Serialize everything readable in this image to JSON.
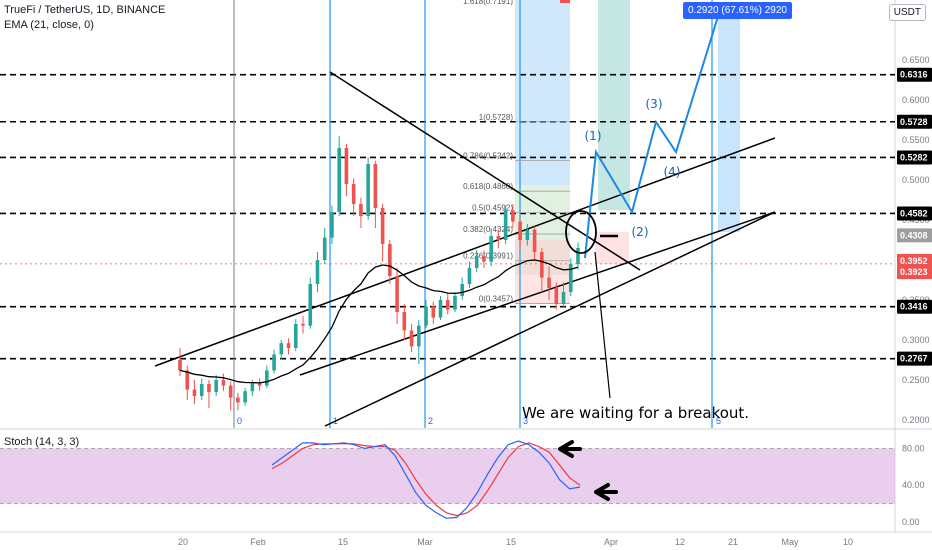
{
  "header": {
    "symbol": "TrueFi / TetherUS, 1D, BINANCE",
    "ema": "EMA (21, close, 0)",
    "stoch": "Stoch (14, 3, 3)",
    "currency": "USDT"
  },
  "annotation": "We are waiting for a breakout.",
  "target_callout": "0.2920 (67.61%) 2920",
  "colors": {
    "up": "#26a69a",
    "down": "#ef5350",
    "ema": "#000000",
    "stoch_k": "#2962ff",
    "stoch_d": "#f23645",
    "stoch_band": "#e1bee7",
    "accent": "#2962ff"
  },
  "chart_data": {
    "type": "candlestick",
    "y_ticks": [
      "0.6500",
      "0.6000",
      "0.5500",
      "0.5000",
      "0.4500",
      "0.4000",
      "0.3500",
      "0.3000",
      "0.2500",
      "0.2000"
    ],
    "price_labels": [
      {
        "label": "0.6316",
        "value": 0.6316,
        "style": "dark"
      },
      {
        "label": "0.5728",
        "value": 0.5728,
        "style": "dark"
      },
      {
        "label": "0.5282",
        "value": 0.5282,
        "style": "dark"
      },
      {
        "label": "0.4582",
        "value": 0.4582,
        "style": "dark"
      },
      {
        "label": "0.4308",
        "value": 0.4308,
        "style": "gray"
      },
      {
        "label": "0.3952",
        "value": 0.3952,
        "style": "red"
      },
      {
        "label": "0.3923",
        "value": 0.3923,
        "style": "red"
      },
      {
        "label": "0.3416",
        "value": 0.3416,
        "style": "dark"
      },
      {
        "label": "0.2767",
        "value": 0.2767,
        "style": "dark"
      }
    ],
    "x_ticks": [
      "20",
      "Feb",
      "15",
      "Mar",
      "15",
      "Apr",
      "12",
      "21",
      "May",
      "10"
    ],
    "vline_labels": [
      "0",
      "1",
      "2",
      "3",
      "5"
    ],
    "fib_levels": [
      {
        "label": "1(0.5728)",
        "value": 0.5728
      },
      {
        "label": "0.786(0.5242)",
        "value": 0.5242
      },
      {
        "label": "0.618(0.4860)",
        "value": 0.486
      },
      {
        "label": "0.5(0.4592)",
        "value": 0.4592
      },
      {
        "label": "0.382(0.4324)",
        "value": 0.4324
      },
      {
        "label": "0.236(0.3991)",
        "value": 0.3991
      },
      {
        "label": "0(0.3457)",
        "value": 0.3457
      }
    ],
    "wave_labels": [
      "(1)",
      "(2)",
      "(3)",
      "(4)"
    ],
    "stoch_ticks": [
      "80.00",
      "40.00",
      "0.00"
    ],
    "candles": [
      [
        0.275,
        0.262,
        0.29,
        0.255
      ],
      [
        0.262,
        0.238,
        0.268,
        0.225
      ],
      [
        0.238,
        0.23,
        0.25,
        0.22
      ],
      [
        0.23,
        0.245,
        0.252,
        0.225
      ],
      [
        0.245,
        0.235,
        0.25,
        0.215
      ],
      [
        0.235,
        0.25,
        0.256,
        0.23
      ],
      [
        0.25,
        0.243,
        0.258,
        0.236
      ],
      [
        0.243,
        0.228,
        0.248,
        0.212
      ],
      [
        0.228,
        0.222,
        0.234,
        0.212
      ],
      [
        0.222,
        0.236,
        0.24,
        0.218
      ],
      [
        0.236,
        0.246,
        0.25,
        0.23
      ],
      [
        0.246,
        0.243,
        0.252,
        0.236
      ],
      [
        0.243,
        0.262,
        0.268,
        0.24
      ],
      [
        0.262,
        0.282,
        0.288,
        0.258
      ],
      [
        0.282,
        0.296,
        0.3,
        0.276
      ],
      [
        0.296,
        0.29,
        0.302,
        0.282
      ],
      [
        0.29,
        0.32,
        0.326,
        0.286
      ],
      [
        0.32,
        0.318,
        0.33,
        0.308
      ],
      [
        0.318,
        0.37,
        0.378,
        0.314
      ],
      [
        0.37,
        0.4,
        0.41,
        0.36
      ],
      [
        0.4,
        0.428,
        0.44,
        0.395
      ],
      [
        0.428,
        0.46,
        0.468,
        0.42
      ],
      [
        0.46,
        0.54,
        0.555,
        0.455
      ],
      [
        0.54,
        0.495,
        0.545,
        0.48
      ],
      [
        0.495,
        0.47,
        0.502,
        0.455
      ],
      [
        0.47,
        0.455,
        0.478,
        0.44
      ],
      [
        0.455,
        0.52,
        0.528,
        0.45
      ],
      [
        0.52,
        0.465,
        0.524,
        0.44
      ],
      [
        0.465,
        0.42,
        0.47,
        0.398
      ],
      [
        0.42,
        0.38,
        0.425,
        0.37
      ],
      [
        0.38,
        0.335,
        0.39,
        0.32
      ],
      [
        0.335,
        0.312,
        0.345,
        0.3
      ],
      [
        0.312,
        0.292,
        0.32,
        0.285
      ],
      [
        0.292,
        0.318,
        0.325,
        0.27
      ],
      [
        0.318,
        0.342,
        0.35,
        0.315
      ],
      [
        0.342,
        0.328,
        0.348,
        0.32
      ],
      [
        0.328,
        0.35,
        0.355,
        0.325
      ],
      [
        0.35,
        0.338,
        0.358,
        0.332
      ],
      [
        0.338,
        0.355,
        0.36,
        0.335
      ],
      [
        0.355,
        0.37,
        0.378,
        0.35
      ],
      [
        0.37,
        0.39,
        0.398,
        0.365
      ],
      [
        0.39,
        0.405,
        0.412,
        0.385
      ],
      [
        0.405,
        0.398,
        0.412,
        0.39
      ],
      [
        0.398,
        0.43,
        0.44,
        0.392
      ],
      [
        0.43,
        0.425,
        0.438,
        0.415
      ],
      [
        0.425,
        0.462,
        0.468,
        0.42
      ],
      [
        0.462,
        0.448,
        0.47,
        0.44
      ],
      [
        0.448,
        0.425,
        0.452,
        0.415
      ],
      [
        0.425,
        0.438,
        0.445,
        0.418
      ],
      [
        0.438,
        0.41,
        0.442,
        0.4
      ],
      [
        0.41,
        0.378,
        0.415,
        0.36
      ],
      [
        0.378,
        0.365,
        0.392,
        0.35
      ],
      [
        0.365,
        0.345,
        0.372,
        0.338
      ],
      [
        0.345,
        0.36,
        0.372,
        0.34
      ],
      [
        0.36,
        0.395,
        0.402,
        0.355
      ],
      [
        0.395,
        0.415,
        0.422,
        0.388
      ]
    ],
    "stoch_k": [
      62,
      70,
      78,
      86,
      86,
      84,
      85,
      86,
      84,
      80,
      82,
      84,
      72,
      52,
      32,
      18,
      10,
      4,
      5,
      16,
      32,
      52,
      70,
      84,
      88,
      84,
      76,
      64,
      46,
      36,
      38
    ],
    "stoch_d": [
      58,
      64,
      72,
      80,
      84,
      85,
      85,
      85,
      85,
      83,
      82,
      82,
      78,
      64,
      46,
      30,
      18,
      10,
      7,
      10,
      18,
      34,
      52,
      70,
      82,
      86,
      82,
      76,
      62,
      48,
      40
    ]
  }
}
